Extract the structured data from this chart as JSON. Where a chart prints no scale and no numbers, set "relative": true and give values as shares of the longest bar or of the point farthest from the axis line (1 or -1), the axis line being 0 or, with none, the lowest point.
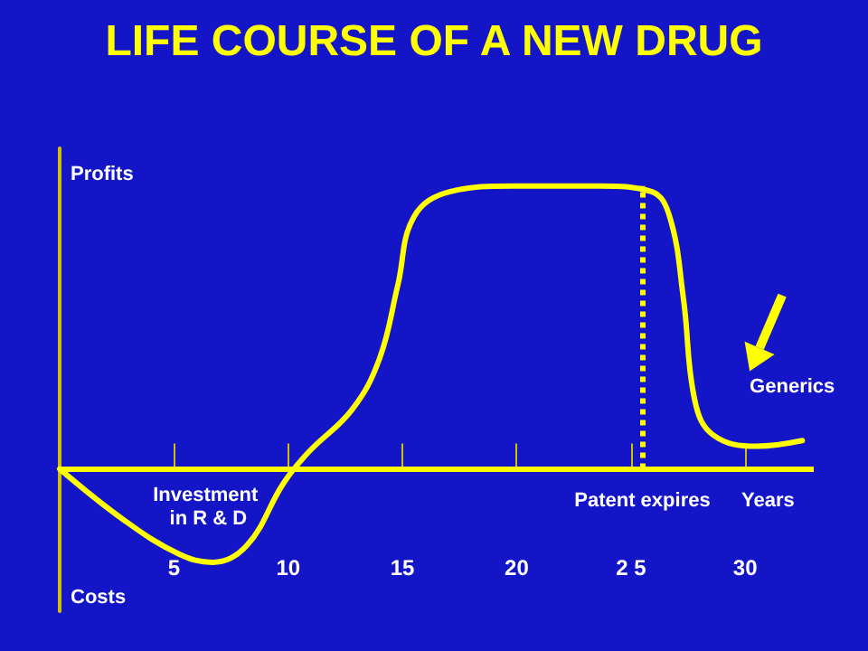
{
  "chart_data": {
    "type": "line",
    "title": "LIFE COURSE OF A NEW DRUG",
    "xlabel": "Years",
    "ylabel": "Profits",
    "relative": true,
    "x": [
      0,
      2.8,
      5.2,
      6.7,
      8.2,
      9.8,
      10.9,
      12.8,
      14.0,
      14.8,
      15.5,
      17.1,
      19.8,
      23.6,
      25.9,
      26.7,
      27.3,
      27.8,
      28.6,
      30.5,
      32.5
    ],
    "series": [
      {
        "color": "#ffff00",
        "values": [
          0,
          -0.18,
          -0.3,
          -0.33,
          -0.27,
          -0.05,
          0.06,
          0.21,
          0.39,
          0.65,
          0.89,
          0.98,
          1,
          1,
          0.98,
          0.89,
          0.6,
          0.24,
          0.12,
          0.08,
          0.1
        ]
      }
    ],
    "xlim": [
      0,
      33
    ],
    "xticks": [
      {
        "value": 5,
        "label": "5"
      },
      {
        "value": 10,
        "label": "10"
      },
      {
        "value": 15,
        "label": "15"
      },
      {
        "value": 20,
        "label": "20"
      },
      {
        "value": 25,
        "label": "2 5"
      },
      {
        "value": 30,
        "label": "30"
      }
    ],
    "ref_lines": [
      {
        "axis": "x",
        "value": 25.5,
        "label": "Patent expires",
        "color": "#ffff00",
        "line_style": "dotted"
      },
      {
        "axis": "y",
        "value": 0,
        "color": "#ffff00",
        "line_style": "solid"
      }
    ],
    "annotations": [
      "Costs",
      "Investment in R & D",
      "Generics"
    ],
    "grid": false,
    "marker": "none",
    "line_style": "solid"
  }
}
